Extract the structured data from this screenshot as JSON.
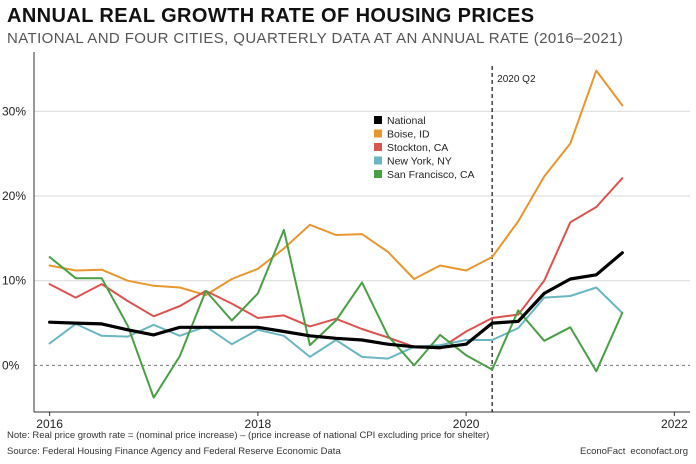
{
  "header": {
    "title": "ANNUAL REAL GROWTH RATE OF HOUSING PRICES",
    "subtitle": "NATIONAL AND FOUR CITIES, QUARTERLY DATA AT AN ANNUAL RATE (2016–2021)"
  },
  "footer": {
    "note": "Note: Real price growth rate = (nominal price increase) – (price increase of national CPI excluding price for shelter)",
    "source": "Source: Federal Housing Finance Agency and Federal Reserve Economic Data",
    "credit_name": "EconoFact",
    "credit_site": "econofact.org"
  },
  "chart_data": {
    "type": "line",
    "title": "ANNUAL REAL GROWTH RATE OF HOUSING PRICES",
    "subtitle": "NATIONAL AND FOUR CITIES, QUARTERLY DATA AT AN ANNUAL RATE (2016–2021)",
    "xlabel": "",
    "ylabel": "",
    "xlim": [
      2015.85,
      2022.15
    ],
    "ylim": [
      -5.5,
      37
    ],
    "x_ticks": [
      2016,
      2018,
      2020,
      2022
    ],
    "x_tick_labels": [
      "2016",
      "2018",
      "2020",
      "2022"
    ],
    "y_ticks": [
      0,
      10,
      20,
      30
    ],
    "y_tick_labels": [
      "0%",
      "10%",
      "20%",
      "30%"
    ],
    "grid": "horizontal",
    "legend_position": "center",
    "annotation": {
      "x": 2020.25,
      "label": "2020 Q2",
      "style": "dashed vertical line"
    },
    "x": [
      2016.0,
      2016.25,
      2016.5,
      2016.75,
      2017.0,
      2017.25,
      2017.5,
      2017.75,
      2018.0,
      2018.25,
      2018.5,
      2018.75,
      2019.0,
      2019.25,
      2019.5,
      2019.75,
      2020.0,
      2020.25,
      2020.5,
      2020.75,
      2021.0,
      2021.25,
      2021.5
    ],
    "series": [
      {
        "name": "National",
        "color": "#000000",
        "stroke_role": "thick",
        "values": [
          5.1,
          5.0,
          4.9,
          4.2,
          3.6,
          4.5,
          4.5,
          4.5,
          4.5,
          4.0,
          3.5,
          3.2,
          3.0,
          2.5,
          2.2,
          2.1,
          2.5,
          5.0,
          5.2,
          8.5,
          10.2,
          10.7,
          13.3
        ]
      },
      {
        "name": "Boise, ID",
        "color": "#e8962e",
        "stroke_role": "normal",
        "values": [
          11.8,
          11.2,
          11.3,
          10.0,
          9.4,
          9.2,
          8.3,
          10.2,
          11.4,
          13.8,
          16.6,
          15.4,
          15.5,
          13.4,
          10.2,
          11.8,
          11.2,
          12.8,
          17.0,
          22.3,
          26.2,
          34.8,
          30.7
        ]
      },
      {
        "name": "Stockton, CA",
        "color": "#d9534f",
        "stroke_role": "normal",
        "values": [
          9.6,
          8.0,
          9.6,
          7.6,
          5.8,
          7.0,
          8.8,
          7.3,
          5.6,
          5.9,
          4.6,
          5.5,
          4.3,
          3.3,
          2.2,
          2.0,
          4.0,
          5.6,
          6.0,
          10.0,
          16.9,
          18.7,
          22.1
        ]
      },
      {
        "name": "New York, NY",
        "color": "#6ab6c1",
        "stroke_role": "normal",
        "values": [
          2.6,
          4.9,
          3.5,
          3.4,
          4.8,
          3.5,
          4.6,
          2.5,
          4.2,
          3.5,
          1.0,
          3.0,
          1.0,
          0.8,
          2.2,
          2.4,
          3.0,
          3.0,
          4.4,
          8.0,
          8.2,
          9.2,
          6.2
        ]
      },
      {
        "name": "San Francisco, CA",
        "color": "#4a9e45",
        "stroke_role": "normal",
        "values": [
          12.8,
          10.3,
          10.3,
          4.7,
          -3.8,
          1.1,
          8.8,
          5.3,
          8.5,
          16.0,
          2.4,
          5.3,
          9.8,
          3.5,
          0.0,
          3.6,
          1.2,
          -0.5,
          6.5,
          2.9,
          4.5,
          -0.7,
          6.2
        ]
      }
    ]
  }
}
